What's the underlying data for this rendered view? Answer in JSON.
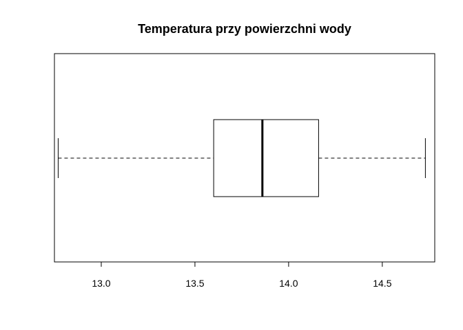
{
  "chart_data": {
    "type": "boxplot",
    "orientation": "horizontal",
    "title": "Temperatura przy powierzchni wody",
    "xlabel": "",
    "ylabel": "",
    "xlim": [
      12.75,
      14.78
    ],
    "x_ticks": [
      13.0,
      13.5,
      14.0,
      14.5
    ],
    "x_tick_labels": [
      "13.0",
      "13.5",
      "14.0",
      "14.5"
    ],
    "box": {
      "whisker_low": 12.77,
      "q1": 13.6,
      "median": 13.86,
      "q3": 14.16,
      "whisker_high": 14.73
    },
    "grid": false,
    "legend": "none"
  }
}
